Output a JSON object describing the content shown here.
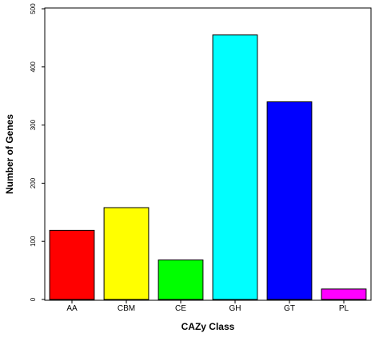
{
  "chart_data": {
    "type": "bar",
    "xlabel": "CAZy Class",
    "ylabel": "Number of Genes",
    "ylim": [
      0,
      500
    ],
    "yticks": [
      0,
      100,
      200,
      300,
      400,
      500
    ],
    "categories": [
      "AA",
      "CBM",
      "CE",
      "GH",
      "GT",
      "PL"
    ],
    "values": [
      119,
      158,
      68,
      455,
      340,
      18
    ],
    "colors": [
      "#ff0000",
      "#ffff00",
      "#00ff00",
      "#00ffff",
      "#0000ff",
      "#ff00ff"
    ],
    "grid": false,
    "legend": "none"
  }
}
